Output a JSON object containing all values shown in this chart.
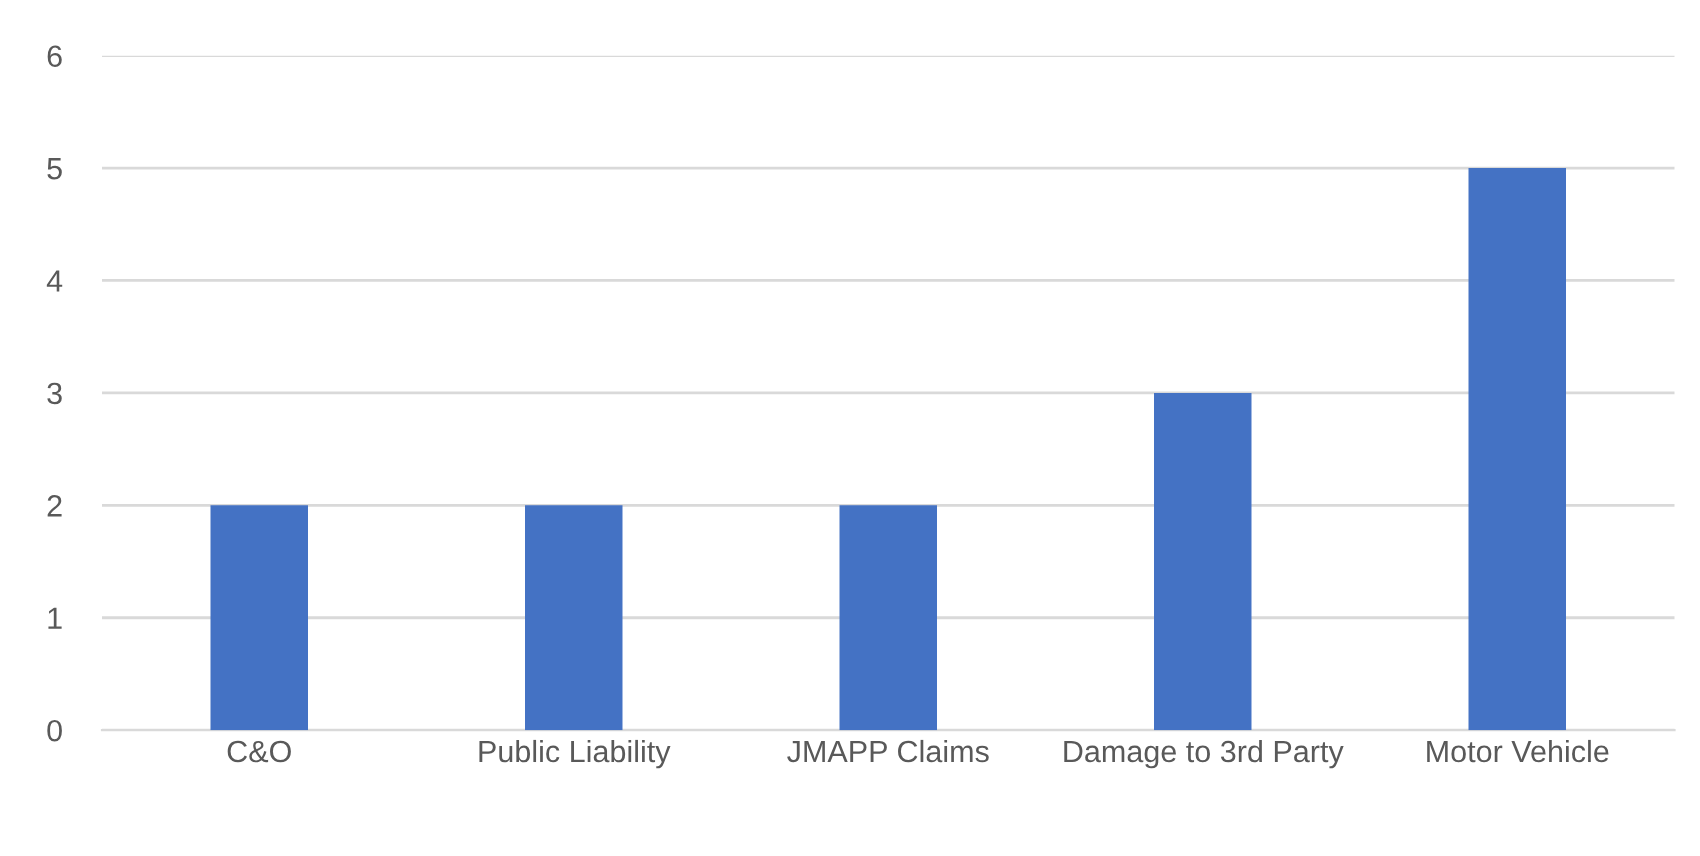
{
  "chart_data": {
    "type": "bar",
    "categories": [
      "C&O",
      "Public Liability",
      "JMAPP Claims",
      "Damage to 3rd Party",
      "Motor Vehicle"
    ],
    "values": [
      2,
      2,
      2,
      3,
      5
    ],
    "color": "#4472c4",
    "ylim": [
      0,
      6
    ],
    "yticks": [
      0,
      1,
      2,
      3,
      4,
      5,
      6
    ],
    "grid": "y"
  }
}
